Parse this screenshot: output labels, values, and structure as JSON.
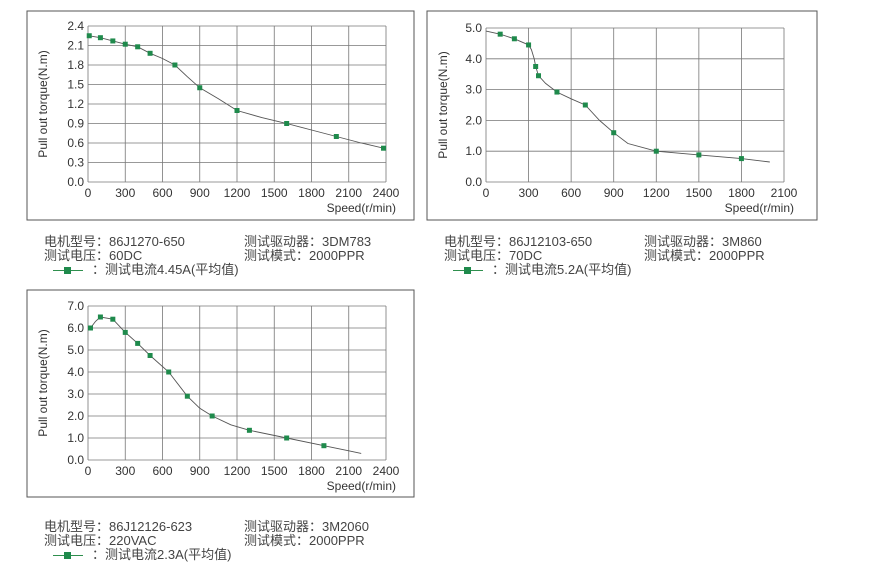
{
  "chart_data": [
    {
      "type": "line",
      "xlabel": "Speed(r/min)",
      "ylabel": "Pull out torque(N.m)",
      "x_ticks": [
        0,
        300,
        600,
        900,
        1200,
        1500,
        1800,
        2100,
        2400
      ],
      "x_tick_labels": [
        "0",
        "300",
        "600",
        "900",
        "1200",
        "1500",
        "1800",
        "2100",
        "2400"
      ],
      "y_ticks": [
        0,
        0.3,
        0.6,
        0.9,
        1.2,
        1.5,
        1.8,
        2.1,
        2.4
      ],
      "y_tick_labels": [
        "0.0",
        "0.3",
        "0.6",
        "0.9",
        "1.2",
        "1.5",
        "1.8",
        "2.1",
        "2.4"
      ],
      "xlim": [
        0,
        2400
      ],
      "ylim": [
        0,
        2.4
      ],
      "grid": true,
      "series_color": "#1f8a4c",
      "x": [
        10,
        100,
        200,
        300,
        400,
        500,
        700,
        900,
        1200,
        1600,
        2000,
        2380
      ],
      "y": [
        2.25,
        2.22,
        2.17,
        2.12,
        2.08,
        1.98,
        1.8,
        1.45,
        1.1,
        0.9,
        0.7,
        0.52
      ],
      "line_x": [
        0,
        10,
        100,
        200,
        300,
        400,
        500,
        600,
        700,
        800,
        900,
        1050,
        1200,
        1400,
        1600,
        1800,
        2000,
        2200,
        2380
      ],
      "line_y": [
        2.25,
        2.25,
        2.22,
        2.17,
        2.12,
        2.08,
        1.98,
        1.9,
        1.8,
        1.62,
        1.45,
        1.28,
        1.1,
        0.99,
        0.9,
        0.8,
        0.7,
        0.6,
        0.52
      ]
    },
    {
      "type": "line",
      "xlabel": "Speed(r/min)",
      "ylabel": "Pull out torque(N.m)",
      "x_ticks": [
        0,
        300,
        600,
        900,
        1200,
        1500,
        1800,
        2100
      ],
      "x_tick_labels": [
        "0",
        "300",
        "600",
        "900",
        "1200",
        "1500",
        "1800",
        "2100"
      ],
      "y_ticks": [
        0,
        1,
        2,
        3,
        4,
        5
      ],
      "y_tick_labels": [
        "0.0",
        "1.0",
        "2.0",
        "3.0",
        "4.0",
        "5.0"
      ],
      "xlim": [
        0,
        2100
      ],
      "ylim": [
        0,
        5
      ],
      "grid": true,
      "series_color": "#1f8a4c",
      "x": [
        100,
        200,
        300,
        350,
        370,
        500,
        700,
        900,
        1200,
        1500,
        1800
      ],
      "y": [
        4.8,
        4.65,
        4.45,
        3.75,
        3.45,
        2.92,
        2.5,
        1.6,
        1.0,
        0.88,
        0.76
      ],
      "line_x": [
        0,
        100,
        200,
        300,
        320,
        340,
        350,
        370,
        420,
        500,
        600,
        700,
        800,
        900,
        1000,
        1200,
        1500,
        1800,
        2000
      ],
      "line_y": [
        4.9,
        4.8,
        4.65,
        4.45,
        4.3,
        4.0,
        3.75,
        3.45,
        3.2,
        2.92,
        2.7,
        2.5,
        2.0,
        1.6,
        1.25,
        1.0,
        0.88,
        0.76,
        0.65
      ]
    },
    {
      "type": "line",
      "xlabel": "Speed(r/min)",
      "ylabel": "Pull out torque(N.m)",
      "x_ticks": [
        0,
        300,
        600,
        900,
        1200,
        1500,
        1800,
        2100,
        2400
      ],
      "x_tick_labels": [
        "0",
        "300",
        "600",
        "900",
        "1200",
        "1500",
        "1800",
        "2100",
        "2400"
      ],
      "y_ticks": [
        0,
        1,
        2,
        3,
        4,
        5,
        6,
        7
      ],
      "y_tick_labels": [
        "0.0",
        "1.0",
        "2.0",
        "3.0",
        "4.0",
        "5.0",
        "6.0",
        "7.0"
      ],
      "xlim": [
        0,
        2400
      ],
      "ylim": [
        0,
        7
      ],
      "grid": true,
      "series_color": "#1f8a4c",
      "x": [
        20,
        100,
        200,
        300,
        400,
        500,
        650,
        800,
        1000,
        1300,
        1600,
        1900
      ],
      "y": [
        6.0,
        6.5,
        6.4,
        5.8,
        5.3,
        4.75,
        4.0,
        2.9,
        2.0,
        1.35,
        1.0,
        0.65
      ],
      "line_x": [
        0,
        20,
        60,
        100,
        200,
        300,
        400,
        500,
        650,
        800,
        900,
        1000,
        1150,
        1300,
        1600,
        1900,
        2100,
        2200
      ],
      "line_y": [
        6.0,
        6.0,
        6.3,
        6.5,
        6.4,
        5.8,
        5.3,
        4.75,
        4.0,
        2.9,
        2.35,
        2.0,
        1.6,
        1.35,
        1.0,
        0.65,
        0.42,
        0.3
      ]
    }
  ],
  "info_blocks": [
    {
      "motor_label": "电机型号：",
      "motor_value": "86J1270-650",
      "voltage_label": "测试电压：",
      "voltage_value": "60DC",
      "driver_label": "测试驱动器：",
      "driver_value": "3DM783",
      "mode_label": "测试模式：",
      "mode_value": "2000PPR",
      "legend_text": "：测试电流4.45A(平均值)"
    },
    {
      "motor_label": "电机型号：",
      "motor_value": "86J12103-650",
      "voltage_label": "测试电压：",
      "voltage_value": "70DC",
      "driver_label": "测试驱动器：",
      "driver_value": "3M860",
      "mode_label": "测试模式：",
      "mode_value": "2000PPR",
      "legend_text": "：测试电流5.2A(平均值)"
    },
    {
      "motor_label": "电机型号：",
      "motor_value": "86J12126-623",
      "voltage_label": "测试电压：",
      "voltage_value": "220VAC",
      "driver_label": "测试驱动器：",
      "driver_value": "3M2060",
      "mode_label": "测试模式：",
      "mode_value": "2000PPR",
      "legend_text": "：测试电流2.3A(平均值)"
    }
  ]
}
